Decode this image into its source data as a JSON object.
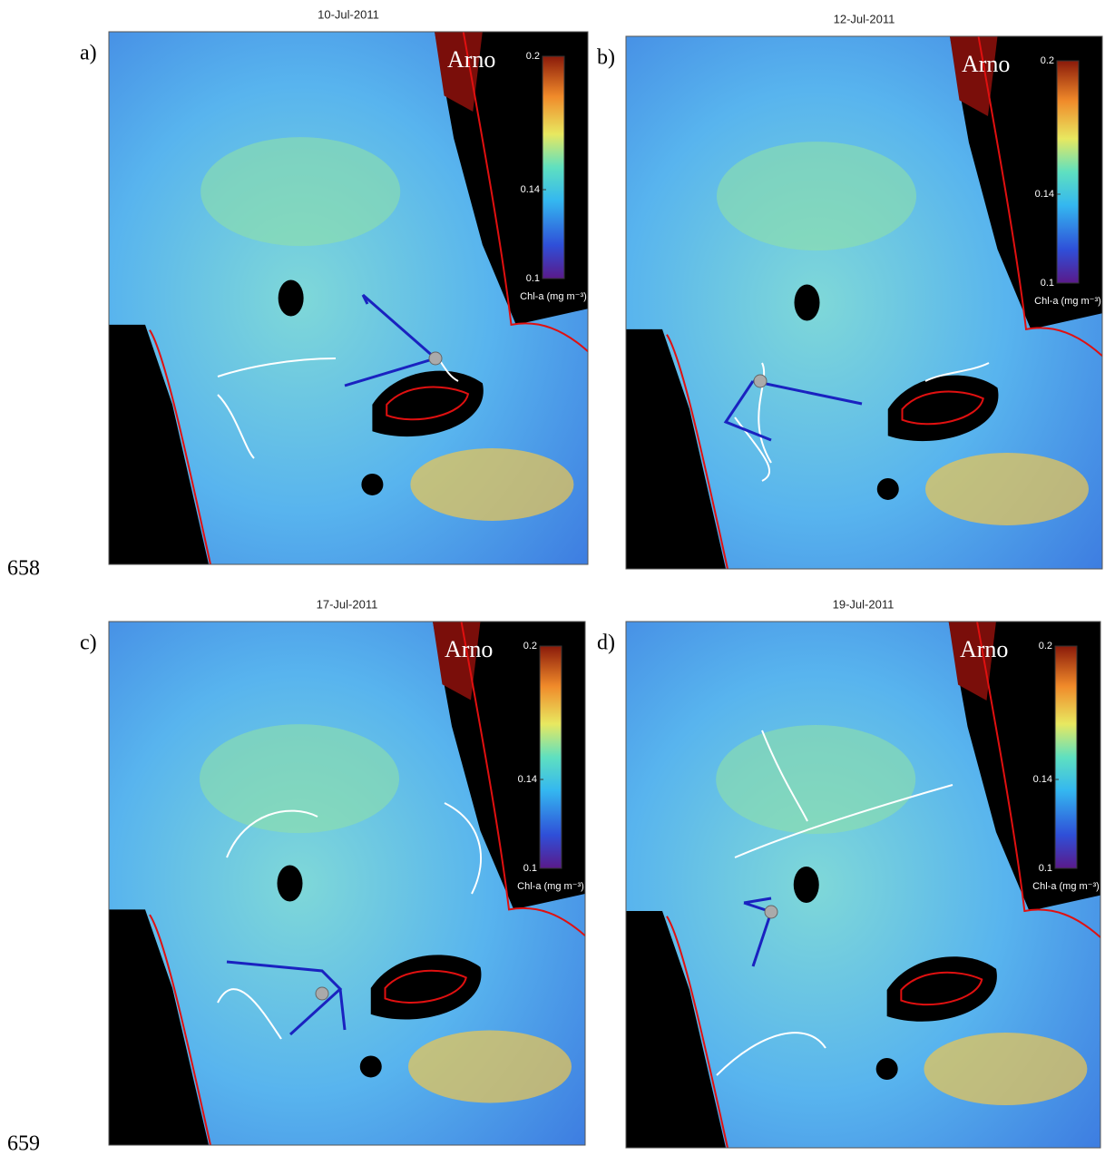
{
  "line_numbers": [
    "658",
    "659"
  ],
  "colorbar": {
    "ticks": [
      0.2,
      0.14,
      0.1
    ],
    "label": "Chl-a (mg m⁻³)"
  },
  "panels": [
    {
      "date": "10-Jul-2011",
      "label": "a)",
      "place": "Arno"
    },
    {
      "date": "12-Jul-2011",
      "label": "b)",
      "place": "Arno"
    },
    {
      "date": "17-Jul-2011",
      "label": "c)",
      "place": "Arno"
    },
    {
      "date": "19-Jul-2011",
      "label": "d)",
      "place": "Arno"
    }
  ]
}
